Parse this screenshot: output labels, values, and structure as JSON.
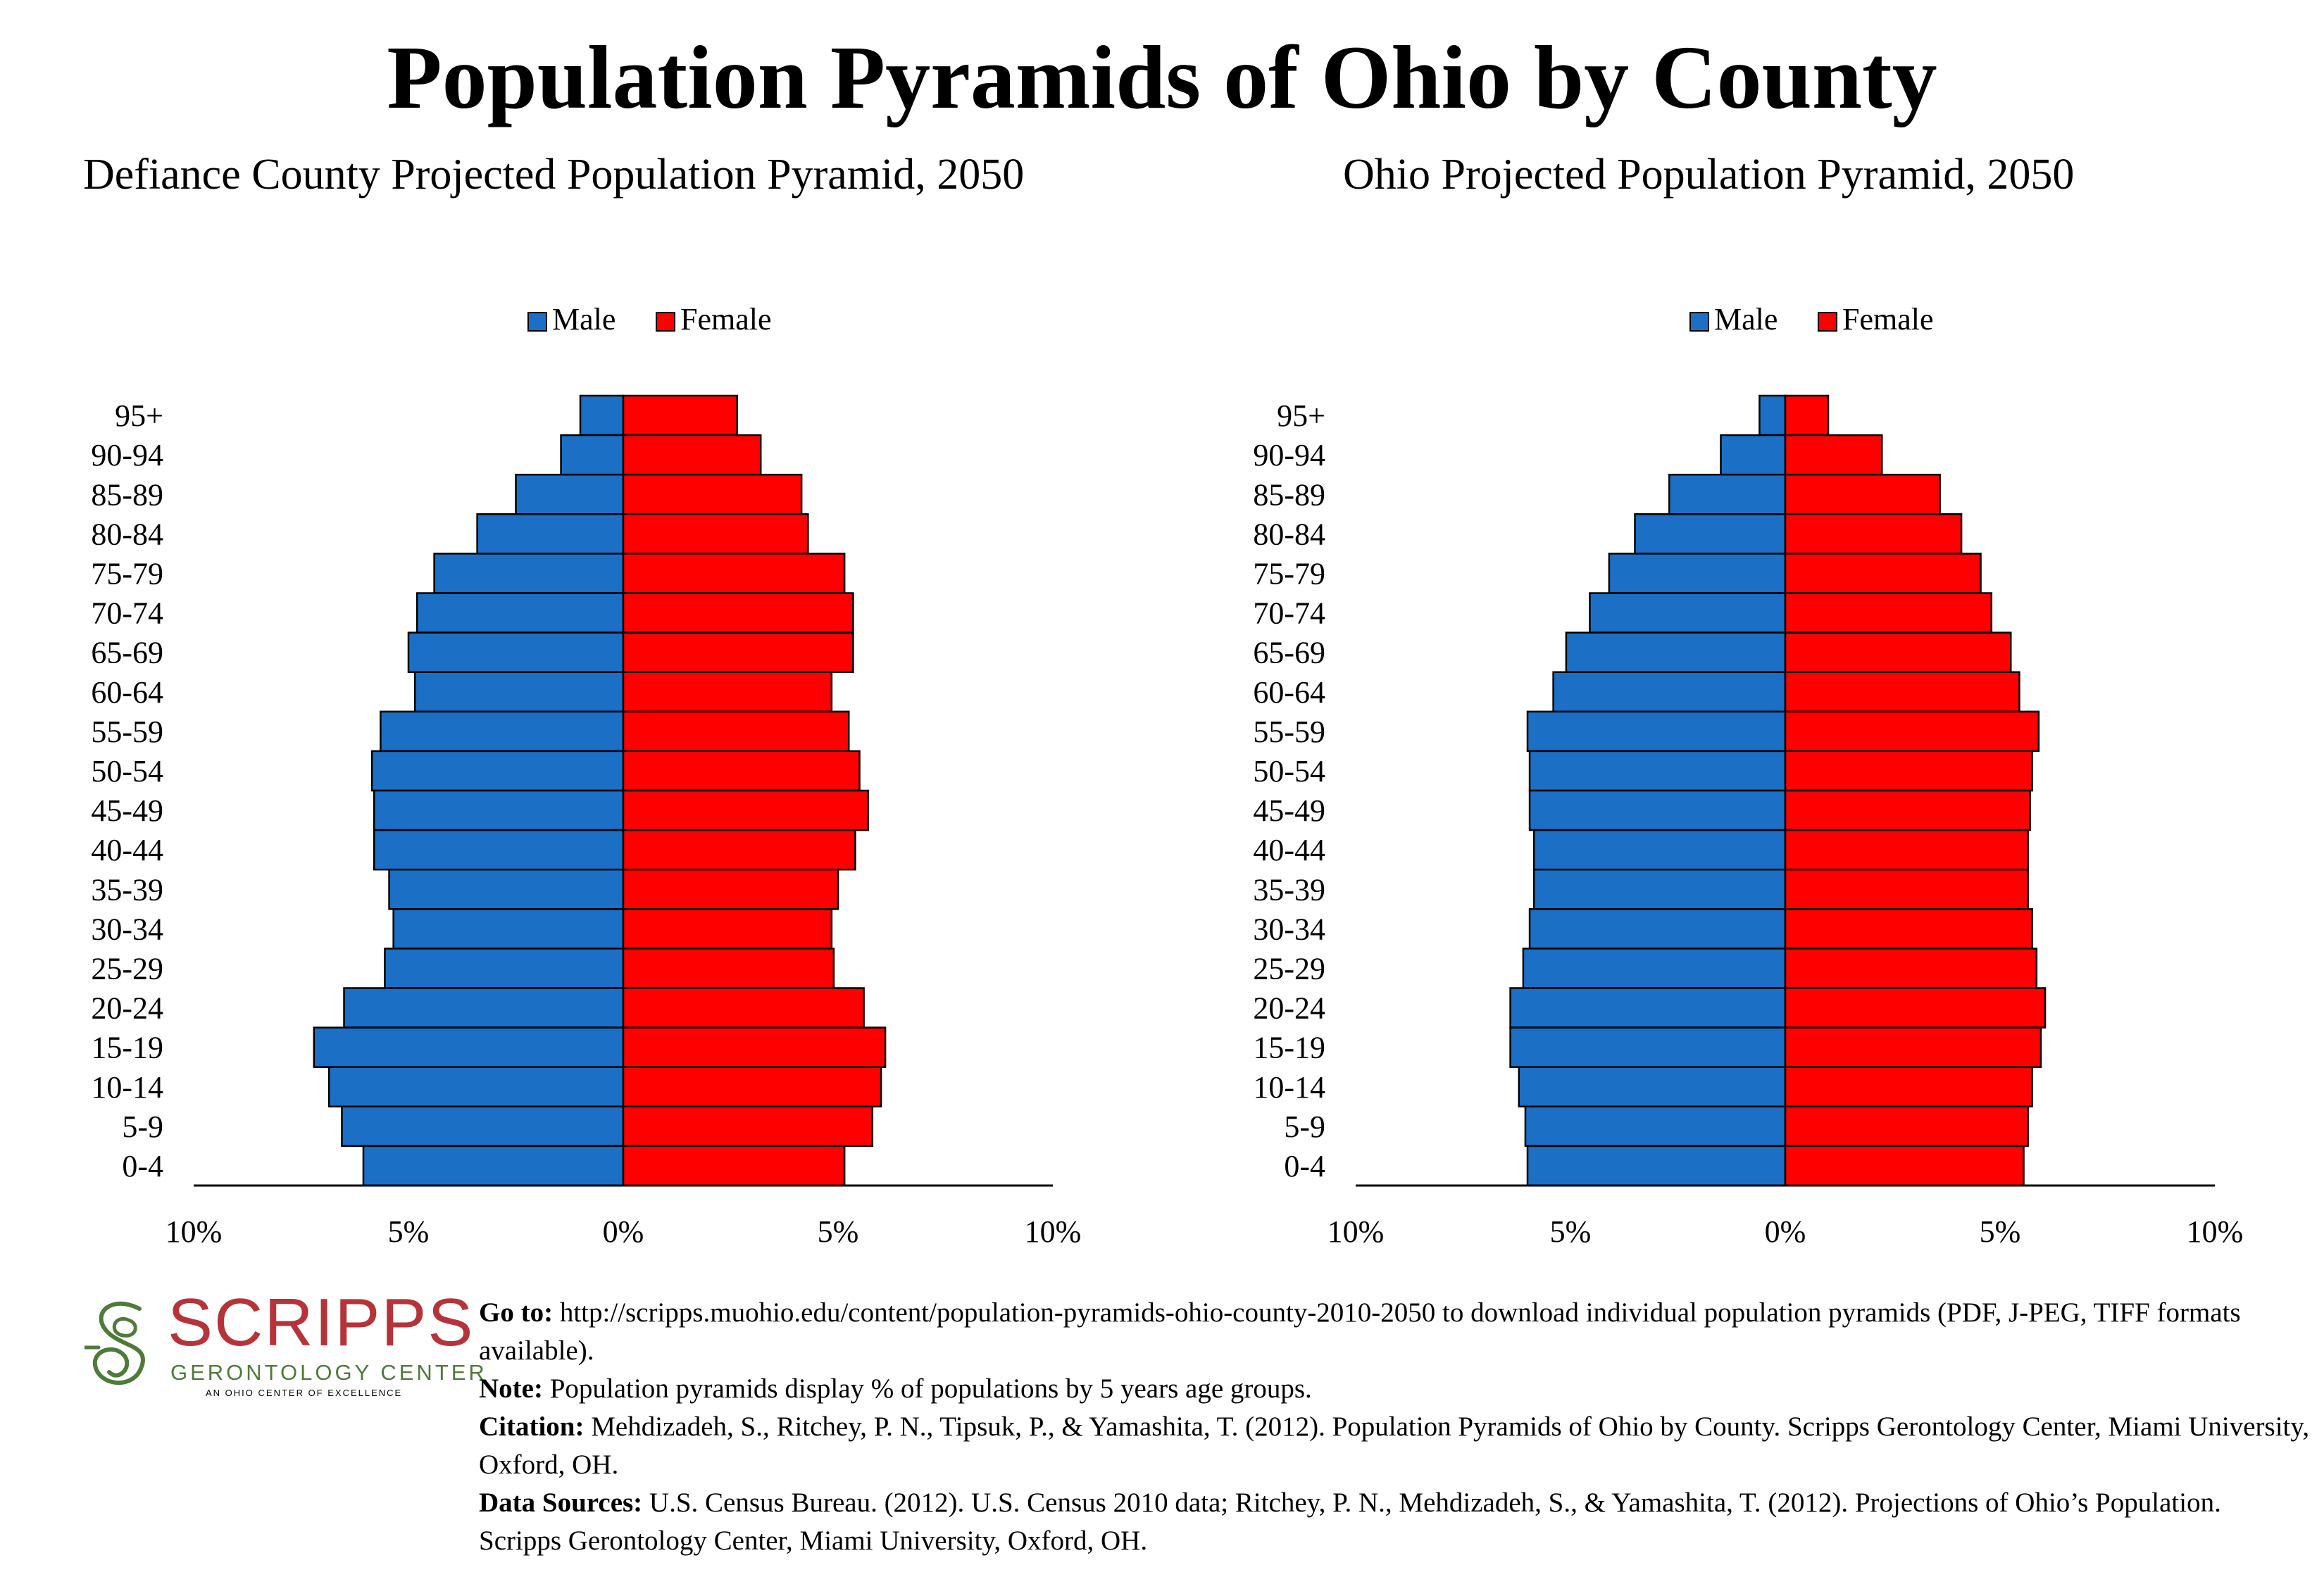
{
  "title": "Population Pyramids of Ohio by County",
  "colors": {
    "male": "#1b6fc4",
    "female": "#ff0000"
  },
  "logo": {
    "name": "SCRIPPS",
    "subtitle": "GERONTOLOGY CENTER",
    "tagline": "AN OHIO CENTER OF EXCELLENCE"
  },
  "footer": {
    "goto_label": "Go to:",
    "goto_text": "http://scripps.muohio.edu/content/population-pyramids-ohio-county-2010-2050 to download individual population pyramids (PDF, J-PEG, TIFF formats available).",
    "note_label": "Note:",
    "note_text": "Population pyramids display % of populations by 5 years age groups.",
    "citation_label": "Citation:",
    "citation_text": "Mehdizadeh, S., Ritchey, P. N., Tipsuk, P., & Yamashita, T. (2012). Population Pyramids of Ohio by County. Scripps Gerontology Center, Miami University, Oxford, OH.",
    "sources_label": "Data Sources:",
    "sources_text": "U.S. Census Bureau. (2012). U.S. Census 2010 data; Ritchey, P. N., Mehdizadeh, S., & Yamashita, T. (2012). Projections of Ohio’s Population. Scripps Gerontology Center, Miami University, Oxford, OH."
  },
  "chart_data": [
    {
      "type": "bar",
      "orientation": "horizontal-pyramid",
      "title": "Defiance County Projected Population Pyramid, 2050",
      "categories": [
        "95+",
        "90-94",
        "85-89",
        "80-84",
        "75-79",
        "70-74",
        "65-69",
        "60-64",
        "55-59",
        "50-54",
        "45-49",
        "40-44",
        "35-39",
        "30-34",
        "25-29",
        "20-24",
        "15-19",
        "10-14",
        "5-9",
        "0-4"
      ],
      "series": [
        {
          "name": "Male",
          "values": [
            1.0,
            1.45,
            2.5,
            3.4,
            4.4,
            4.8,
            5.0,
            4.85,
            5.65,
            5.85,
            5.8,
            5.8,
            5.45,
            5.35,
            5.55,
            6.5,
            7.2,
            6.85,
            6.55,
            6.05
          ]
        },
        {
          "name": "Female",
          "values": [
            2.65,
            3.2,
            4.15,
            4.3,
            5.15,
            5.35,
            5.35,
            4.85,
            5.25,
            5.5,
            5.7,
            5.4,
            5.0,
            4.85,
            4.9,
            5.6,
            6.1,
            6.0,
            5.8,
            5.15
          ]
        }
      ],
      "xlim": [
        -10,
        10
      ],
      "x_ticks": [
        "10%",
        "5%",
        "0%",
        "5%",
        "10%"
      ],
      "legend": "top-center"
    },
    {
      "type": "bar",
      "orientation": "horizontal-pyramid",
      "title": "Ohio Projected Population Pyramid, 2050",
      "categories": [
        "95+",
        "90-94",
        "85-89",
        "80-84",
        "75-79",
        "70-74",
        "65-69",
        "60-64",
        "55-59",
        "50-54",
        "45-49",
        "40-44",
        "35-39",
        "30-34",
        "25-29",
        "20-24",
        "15-19",
        "10-14",
        "5-9",
        "0-4"
      ],
      "series": [
        {
          "name": "Male",
          "values": [
            0.6,
            1.5,
            2.7,
            3.5,
            4.1,
            4.55,
            5.1,
            5.4,
            6.0,
            5.95,
            5.95,
            5.85,
            5.85,
            5.95,
            6.1,
            6.4,
            6.4,
            6.2,
            6.05,
            6.0
          ]
        },
        {
          "name": "Female",
          "values": [
            1.0,
            2.25,
            3.6,
            4.1,
            4.55,
            4.8,
            5.25,
            5.45,
            5.9,
            5.75,
            5.7,
            5.65,
            5.65,
            5.75,
            5.85,
            6.05,
            5.95,
            5.75,
            5.65,
            5.55
          ]
        }
      ],
      "xlim": [
        -10,
        10
      ],
      "x_ticks": [
        "10%",
        "5%",
        "0%",
        "5%",
        "10%"
      ],
      "legend": "top-center"
    }
  ]
}
